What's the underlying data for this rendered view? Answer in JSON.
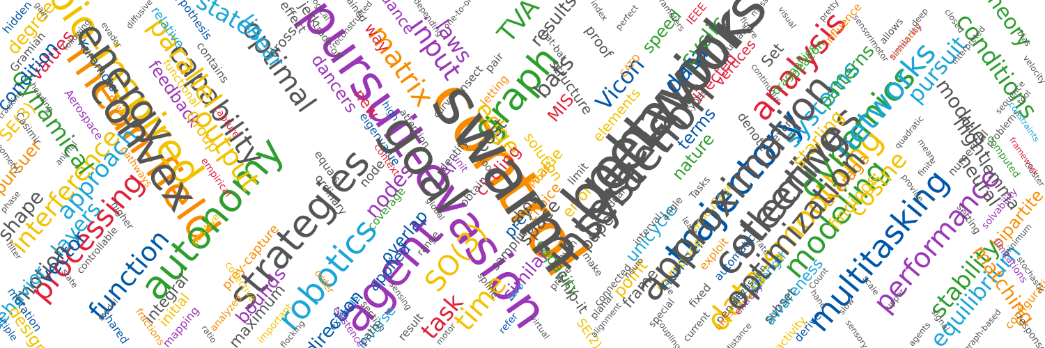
{
  "palette": {
    "orange": "#f78c00",
    "purple": "#9b36b7",
    "green": "#2e9e2e",
    "blue": "#0057a8",
    "cyan": "#1aa7d8",
    "gray": "#555555",
    "yellow": "#f2c200",
    "red": "#e0213a"
  },
  "words": [
    {
      "text": "control",
      "color": "#f78c00"
    },
    {
      "text": "pursuit-evasion",
      "color": "#9b36b7"
    },
    {
      "text": "network",
      "color": "#555555"
    },
    {
      "text": "mean-field",
      "color": "#f78c00"
    },
    {
      "text": "bio-inspired",
      "color": "#f2c200"
    },
    {
      "text": "system",
      "color": "#555555"
    },
    {
      "text": "trajectory",
      "color": "#0057a8"
    },
    {
      "text": "collectives",
      "color": "#555555"
    },
    {
      "text": "data-smoothing",
      "color": "#f2c200"
    },
    {
      "text": "autonomy",
      "color": "#2e9e2e"
    },
    {
      "text": "strategies",
      "color": "#555555"
    },
    {
      "text": "agent",
      "color": "#9b36b7"
    },
    {
      "text": "graph",
      "color": "#2e9e2e"
    },
    {
      "text": "analysis",
      "color": "#e0213a"
    },
    {
      "text": "dynamics",
      "color": "#2e9e2e"
    },
    {
      "text": "networks",
      "color": "#1aa7d8"
    },
    {
      "text": "multitasking",
      "color": "#0057a8"
    },
    {
      "text": "modeling",
      "color": "#2e9e2e"
    },
    {
      "text": "performance",
      "color": "#9b36b7"
    },
    {
      "text": "robotics",
      "color": "#1aa7d8"
    },
    {
      "text": "capability",
      "color": "#555555"
    },
    {
      "text": "optimal",
      "color": "#555555"
    },
    {
      "text": "processing",
      "color": "#e0213a"
    },
    {
      "text": "function",
      "color": "#0057a8"
    },
    {
      "text": "parallel",
      "color": "#f2c200"
    },
    {
      "text": "output",
      "color": "#f2c200"
    },
    {
      "text": "interference",
      "color": "#f2c200"
    },
    {
      "text": "approach",
      "color": "#1aa7d8"
    },
    {
      "text": "dynamical",
      "color": "#2e9e2e"
    },
    {
      "text": "layers",
      "color": "#1aa7d8"
    },
    {
      "text": "vector",
      "color": "#0057a8"
    },
    {
      "text": "motion",
      "color": "#555555"
    },
    {
      "text": "behavior",
      "color": "#1aa7d8"
    },
    {
      "text": "shape",
      "color": "#555555"
    },
    {
      "text": "values",
      "color": "#e0213a"
    },
    {
      "text": "condition",
      "color": "#0057a8"
    },
    {
      "text": "SE(3)",
      "color": "#f2c200"
    },
    {
      "text": "matrix",
      "color": "#f78c00"
    },
    {
      "text": "input",
      "color": "#9b36b7"
    },
    {
      "text": "laws",
      "color": "#9b36b7"
    },
    {
      "text": "states",
      "color": "#1aa7d8"
    },
    {
      "text": "linear",
      "color": "#1aa7d8"
    },
    {
      "text": "TVA",
      "color": "#2e9e2e"
    },
    {
      "text": "bats",
      "color": "#555555"
    },
    {
      "text": "Vicon",
      "color": "#0057a8"
    },
    {
      "text": "data",
      "color": "#0057a8"
    },
    {
      "text": "cyclic",
      "color": "#2e9e2e"
    },
    {
      "text": "systems",
      "color": "#1aa7d8"
    },
    {
      "text": "pursuit",
      "color": "#1aa7d8"
    },
    {
      "text": "conditions",
      "color": "#2e9e2e"
    },
    {
      "text": "theory",
      "color": "#2e9e2e"
    },
    {
      "text": "module",
      "color": "#555555"
    },
    {
      "text": "flight",
      "color": "#555555"
    },
    {
      "text": "neural",
      "color": "#555555"
    },
    {
      "text": "lemma",
      "color": "#555555"
    },
    {
      "text": "cosine",
      "color": "#f2c200"
    },
    {
      "text": "starling",
      "color": "#f2c200"
    },
    {
      "text": "stability",
      "color": "#2e9e2e"
    },
    {
      "text": "equilibrium",
      "color": "#1aa7d8"
    },
    {
      "text": "matching",
      "color": "#f78c00"
    },
    {
      "text": "bipartite",
      "color": "#f78c00"
    },
    {
      "text": "SO(3)",
      "color": "#f2c200"
    },
    {
      "text": "time",
      "color": "#f2c200"
    },
    {
      "text": "task",
      "color": "#e0213a"
    },
    {
      "text": "edge",
      "color": "#f2c200"
    },
    {
      "text": "cost",
      "color": "#555555"
    },
    {
      "text": "nodes",
      "color": "#9b36b7"
    },
    {
      "text": "overlap",
      "color": "#0057a8"
    },
    {
      "text": "similar",
      "color": "#9b36b7"
    },
    {
      "text": "space",
      "color": "#555555"
    },
    {
      "text": "paper",
      "color": "#555555"
    },
    {
      "text": "terms",
      "color": "#0057a8"
    },
    {
      "text": "nature",
      "color": "#2e9e2e"
    },
    {
      "text": "unicycle",
      "color": "#1aa7d8"
    },
    {
      "text": "point",
      "color": "#f2c200"
    },
    {
      "text": "error",
      "color": "#f2c200"
    },
    {
      "text": "frame",
      "color": "#555555"
    },
    {
      "text": "number",
      "color": "#0057a8"
    },
    {
      "text": "direction",
      "color": "#0057a8"
    },
    {
      "text": "inverse",
      "color": "#1aa7d8"
    },
    {
      "text": "applied",
      "color": "#0057a8"
    },
    {
      "text": "bounds",
      "color": "#9b36b7"
    },
    {
      "text": "maximum",
      "color": "#555555"
    },
    {
      "text": "integral",
      "color": "#555555"
    },
    {
      "text": "initial",
      "color": "#f2c200"
    },
    {
      "text": "pursuer",
      "color": "#f78c00"
    },
    {
      "text": "design",
      "color": "#f2c200"
    },
    {
      "text": "degree",
      "color": "#f2c200"
    },
    {
      "text": "feedback",
      "color": "#9b36b7"
    },
    {
      "text": "Group",
      "color": "#f2c200"
    },
    {
      "text": "results",
      "color": "#555555"
    },
    {
      "text": "speed",
      "color": "#2e9e2e"
    },
    {
      "text": "circling",
      "color": "#e0213a"
    },
    {
      "text": "AI",
      "color": "#9b36b7"
    },
    {
      "text": "value",
      "color": "#f2c200"
    },
    {
      "text": "MIS",
      "color": "#e0213a"
    },
    {
      "text": "average",
      "color": "#f78c00"
    },
    {
      "text": "findings",
      "color": "#f2c200"
    },
    {
      "text": "patterns",
      "color": "#2e9e2e"
    },
    {
      "text": "awareness",
      "color": "#1aa7d8"
    },
    {
      "text": "introduce",
      "color": "#f2c200"
    },
    {
      "text": "prey",
      "color": "#0057a8"
    },
    {
      "text": "show",
      "color": "#555555"
    },
    {
      "text": "new",
      "color": "#e0213a"
    },
    {
      "text": "way",
      "color": "#e0213a"
    },
    {
      "text": "dance",
      "color": "#9b36b7"
    },
    {
      "text": "dancers",
      "color": "#9b36b7"
    },
    {
      "text": "solution",
      "color": "#f2c200"
    },
    {
      "text": "choice",
      "color": "#f78c00"
    },
    {
      "text": "structure",
      "color": "#555555"
    },
    {
      "text": "proof",
      "color": "#555555"
    },
    {
      "text": "Set",
      "color": "#555555"
    },
    {
      "text": "denote",
      "color": "#555555"
    },
    {
      "text": "vertices",
      "color": "#e0213a"
    },
    {
      "text": "directed",
      "color": "#e0213a"
    },
    {
      "text": "elements",
      "color": "#f2c200"
    },
    {
      "text": "capacity",
      "color": "#2e9e2e"
    },
    {
      "text": "whip-it",
      "color": "#555555"
    },
    {
      "text": "SE(2)",
      "color": "#f2c200"
    },
    {
      "text": "sampling",
      "color": "#555555"
    },
    {
      "text": "jerk",
      "color": "#555555"
    },
    {
      "text": "effect",
      "color": "#555555"
    },
    {
      "text": "cross",
      "color": "#555555"
    },
    {
      "text": "Casimir",
      "color": "#555555"
    },
    {
      "text": "Gramian",
      "color": "#555555"
    },
    {
      "text": "hidden",
      "color": "#0057a8"
    },
    {
      "text": "Kuramoto",
      "color": "#0057a8"
    },
    {
      "text": "Aerospace",
      "color": "#9b36b7"
    },
    {
      "text": "hypothesis",
      "color": "#0057a8"
    },
    {
      "text": "relative",
      "color": "#1aa7d8"
    },
    {
      "text": "functional",
      "color": "#f2c200"
    },
    {
      "text": "contains",
      "color": "#555555"
    },
    {
      "text": "capture",
      "color": "#e0213a"
    },
    {
      "text": "empirical",
      "color": "#e0213a"
    },
    {
      "text": "prey-capture",
      "color": "#f78c00"
    },
    {
      "text": "ordinary",
      "color": "#555555"
    },
    {
      "text": "equals",
      "color": "#555555"
    },
    {
      "text": "coverage",
      "color": "#2e9e2e"
    },
    {
      "text": "identify",
      "color": "#555555"
    },
    {
      "text": "insect",
      "color": "#555555"
    },
    {
      "text": "pair",
      "color": "#555555"
    },
    {
      "text": "node",
      "color": "#555555"
    },
    {
      "text": "path",
      "color": "#555555"
    },
    {
      "text": "example",
      "color": "#0057a8"
    },
    {
      "text": "order",
      "color": "#f78c00"
    },
    {
      "text": "result",
      "color": "#555555"
    },
    {
      "text": "range",
      "color": "#555555"
    },
    {
      "text": "obtain",
      "color": "#555555"
    },
    {
      "text": "unit",
      "color": "#9b36b7"
    },
    {
      "text": "loop",
      "color": "#555555"
    },
    {
      "text": "zero",
      "color": "#1aa7d8"
    },
    {
      "text": "limit",
      "color": "#555555"
    },
    {
      "text": "fixed",
      "color": "#555555"
    },
    {
      "text": "penalty",
      "color": "#555555"
    },
    {
      "text": "units",
      "color": "#f78c00"
    },
    {
      "text": "entropy",
      "color": "#9b36b7"
    },
    {
      "text": "current",
      "color": "#555555"
    },
    {
      "text": "subset",
      "color": "#555555"
    },
    {
      "text": "derive",
      "color": "#0057a8"
    },
    {
      "text": "activity",
      "color": "#f2c200"
    },
    {
      "text": "discussion",
      "color": "#0057a8"
    },
    {
      "text": "automatic",
      "color": "#0057a8"
    },
    {
      "text": "strength",
      "color": "#1aa7d8"
    },
    {
      "text": "exploit",
      "color": "#f78c00"
    },
    {
      "text": "camouflage",
      "color": "#f2c200"
    },
    {
      "text": "dragonflies",
      "color": "#2e9e2e"
    },
    {
      "text": "beacon",
      "color": "#2e9e2e"
    },
    {
      "text": "influence",
      "color": "#f78c00"
    },
    {
      "text": "allows",
      "color": "#555555"
    },
    {
      "text": "similarity",
      "color": "#9b36b7"
    },
    {
      "text": "problems",
      "color": "#555555"
    },
    {
      "text": "constraints",
      "color": "#1aa7d8"
    },
    {
      "text": "numerical",
      "color": "#555555"
    },
    {
      "text": "estimation",
      "color": "#f78c00"
    },
    {
      "text": "framework",
      "color": "#e0213a"
    },
    {
      "text": "computed",
      "color": "#2e9e2e"
    },
    {
      "text": "setting",
      "color": "#555555"
    },
    {
      "text": "solvability",
      "color": "#9b36b7"
    },
    {
      "text": "limitations",
      "color": "#9b36b7"
    },
    {
      "text": "configuration",
      "color": "#f78c00"
    },
    {
      "text": "response",
      "color": "#555555"
    },
    {
      "text": "mapping",
      "color": "#9b36b7"
    },
    {
      "text": "fractions",
      "color": "#f78c00"
    },
    {
      "text": "shared",
      "color": "#0057a8"
    },
    {
      "text": "mutation",
      "color": "#0057a8"
    },
    {
      "text": "multiple",
      "color": "#0057a8"
    },
    {
      "text": "analyzed",
      "color": "#f78c00"
    },
    {
      "text": "collective",
      "color": "#f2c200"
    },
    {
      "text": "important",
      "color": "#f2c200"
    },
    {
      "text": "existence",
      "color": "#9b36b7"
    },
    {
      "text": "section",
      "color": "#555555"
    },
    {
      "text": "connected",
      "color": "#555555"
    },
    {
      "text": "planar",
      "color": "#555555"
    },
    {
      "text": "special",
      "color": "#555555"
    },
    {
      "text": "interval",
      "color": "#555555"
    },
    {
      "text": "dual",
      "color": "#555555"
    },
    {
      "text": "Tasks",
      "color": "#555555"
    },
    {
      "text": "every",
      "color": "#555555"
    },
    {
      "text": "human",
      "color": "#555555"
    },
    {
      "text": "figure",
      "color": "#555555"
    },
    {
      "text": "IEEE",
      "color": "#e0213a"
    },
    {
      "text": "CATD",
      "color": "#f78c00"
    },
    {
      "text": "Proof",
      "color": "#f78c00"
    },
    {
      "text": "letting",
      "color": "#f78c00"
    },
    {
      "text": "curves",
      "color": "#555555"
    },
    {
      "text": "eigenvalue",
      "color": "#0057a8"
    },
    {
      "text": "high",
      "color": "#0057a8"
    },
    {
      "text": "power",
      "color": "#f78c00"
    },
    {
      "text": "higher",
      "color": "#555555"
    },
    {
      "text": "controllable",
      "color": "#555555"
    },
    {
      "text": "pathways",
      "color": "#f78c00"
    },
    {
      "text": "positive",
      "color": "#f2c200"
    },
    {
      "text": "obtained",
      "color": "#555555"
    },
    {
      "text": "trade-off",
      "color": "#555555"
    },
    {
      "text": "bat-bat",
      "color": "#555555"
    },
    {
      "text": "angle",
      "color": "#555555"
    },
    {
      "text": "types",
      "color": "#555555"
    },
    {
      "text": "attention",
      "color": "#555555"
    },
    {
      "text": "global",
      "color": "#555555"
    },
    {
      "text": "context",
      "color": "#e0213a"
    },
    {
      "text": "prove",
      "color": "#555555"
    },
    {
      "text": "spline",
      "color": "#555555"
    },
    {
      "text": "refer",
      "color": "#0057a8"
    },
    {
      "text": "even",
      "color": "#555555"
    },
    {
      "text": "make",
      "color": "#555555"
    },
    {
      "text": "least",
      "color": "#555555"
    },
    {
      "text": "neuro",
      "color": "#555555"
    },
    {
      "text": "Lie",
      "color": "#555555"
    },
    {
      "text": "rate",
      "color": "#555555"
    },
    {
      "text": "Count",
      "color": "#555555"
    },
    {
      "text": "hand",
      "color": "#555555"
    },
    {
      "text": "slow",
      "color": "#555555"
    },
    {
      "text": "scale",
      "color": "#555555"
    },
    {
      "text": "upper",
      "color": "#555555"
    },
    {
      "text": "provide",
      "color": "#555555"
    },
    {
      "text": "finite",
      "color": "#555555"
    },
    {
      "text": "mean",
      "color": "#555555"
    },
    {
      "text": "quadratic",
      "color": "#555555"
    },
    {
      "text": "continuous",
      "color": "#555555"
    },
    {
      "text": "sensorimotor",
      "color": "#555555"
    },
    {
      "text": "interpreted",
      "color": "#555555"
    },
    {
      "text": "closed",
      "color": "#555555"
    },
    {
      "text": "deep",
      "color": "#555555"
    },
    {
      "text": "tool",
      "color": "#555555"
    },
    {
      "text": "bias",
      "color": "#555555"
    },
    {
      "text": "pretty",
      "color": "#555555"
    },
    {
      "text": "visual",
      "color": "#555555"
    },
    {
      "text": "mass",
      "color": "#555555"
    },
    {
      "text": "parameters",
      "color": "#555555"
    },
    {
      "text": "perfect",
      "color": "#555555"
    },
    {
      "text": "index",
      "color": "#555555"
    },
    {
      "text": "one-to-one",
      "color": "#555555"
    },
    {
      "text": "depending",
      "color": "#555555"
    },
    {
      "text": "reconstructed",
      "color": "#555555"
    },
    {
      "text": "biological",
      "color": "#555555"
    },
    {
      "text": "diffusive",
      "color": "#555555"
    },
    {
      "text": "evader",
      "color": "#555555"
    },
    {
      "text": "following",
      "color": "#555555"
    },
    {
      "text": "gain",
      "color": "#555555"
    },
    {
      "text": "state",
      "color": "#555555"
    },
    {
      "text": "model",
      "color": "#555555"
    },
    {
      "text": "ratio",
      "color": "#555555"
    },
    {
      "text": "flocking",
      "color": "#555555"
    },
    {
      "text": "sensing",
      "color": "#555555"
    },
    {
      "text": "motor",
      "color": "#555555"
    },
    {
      "text": "virtual",
      "color": "#555555"
    },
    {
      "text": "alignment",
      "color": "#555555"
    },
    {
      "text": "coupling",
      "color": "#555555"
    },
    {
      "text": "distance",
      "color": "#555555"
    },
    {
      "text": "sensory",
      "color": "#555555"
    },
    {
      "text": "agents",
      "color": "#555555"
    },
    {
      "text": "signal",
      "color": "#555555"
    },
    {
      "text": "graph-based",
      "color": "#555555"
    },
    {
      "text": "cluster",
      "color": "#555555"
    },
    {
      "text": "minimum",
      "color": "#555555"
    },
    {
      "text": "stochastic",
      "color": "#555555"
    },
    {
      "text": "sequence",
      "color": "#555555"
    },
    {
      "text": "velocity",
      "color": "#555555"
    },
    {
      "text": "filter",
      "color": "#555555"
    },
    {
      "text": "phase",
      "color": "#555555"
    },
    {
      "text": "geometry",
      "color": "#555555"
    },
    {
      "text": "tracking",
      "color": "#555555"
    },
    {
      "text": "heading",
      "color": "#555555"
    },
    {
      "text": "animal",
      "color": "#555555"
    },
    {
      "text": "swarm",
      "color": "#555555"
    },
    {
      "text": "goal",
      "color": "#555555"
    },
    {
      "text": "behaviors",
      "color": "#555555"
    },
    {
      "text": "convex",
      "color": "#555555"
    },
    {
      "text": "energy",
      "color": "#555555"
    },
    {
      "text": "interaction",
      "color": "#555555"
    },
    {
      "text": "approximation",
      "color": "#555555"
    },
    {
      "text": "steering",
      "color": "#555555"
    },
    {
      "text": "optimization",
      "color": "#555555"
    }
  ]
}
